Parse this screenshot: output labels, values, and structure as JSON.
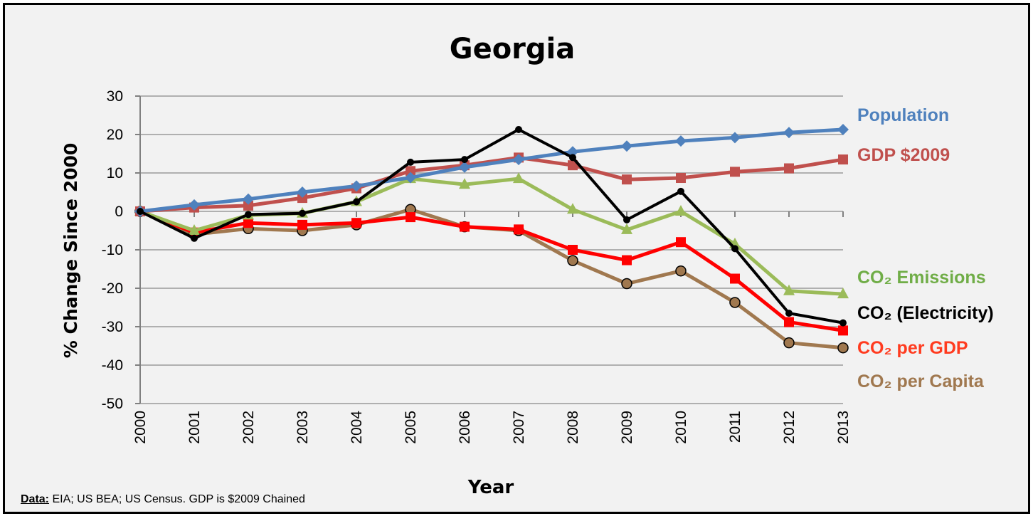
{
  "chart_data": {
    "type": "line",
    "title": "Georgia",
    "xlabel": "Year",
    "ylabel": "% Change Since 2000",
    "ylim": [
      -50,
      30
    ],
    "yticks": [
      30,
      20,
      10,
      0,
      -10,
      -20,
      -30,
      -40,
      -50
    ],
    "grid": true,
    "legend_placement": "right (end-of-line labels)",
    "x": [
      "2000",
      "2001",
      "2002",
      "2003",
      "2004",
      "2005",
      "2006",
      "2007",
      "2008",
      "2009",
      "2010",
      "2011",
      "2012",
      "2013"
    ],
    "series": [
      {
        "name": "Population",
        "color": "#4f81bd",
        "marker": "diamond",
        "values": [
          0,
          1.7,
          3.2,
          5.0,
          6.6,
          8.8,
          11.5,
          13.5,
          15.5,
          17.0,
          18.3,
          19.2,
          20.5,
          21.3
        ]
      },
      {
        "name": "GDP $2009",
        "color": "#c0504d",
        "marker": "square",
        "values": [
          0,
          1.0,
          1.5,
          3.5,
          6.0,
          10.5,
          12.0,
          14.0,
          12.0,
          8.3,
          8.7,
          10.3,
          11.2,
          13.5
        ]
      },
      {
        "name": "CO₂ Emissions",
        "color": "#9bbb59",
        "marker": "triangle",
        "values": [
          0,
          -5.0,
          -1.0,
          -0.5,
          2.5,
          8.5,
          7.0,
          8.5,
          0.5,
          -4.8,
          0.0,
          -8.5,
          -20.7,
          -21.5
        ]
      },
      {
        "name": "CO₂ (Electricity)",
        "color": "#000000",
        "marker": "dot",
        "values": [
          0,
          -7.0,
          -0.8,
          -0.5,
          2.5,
          12.8,
          13.5,
          21.3,
          14.0,
          -2.2,
          5.2,
          -9.7,
          -26.5,
          -29.0
        ]
      },
      {
        "name": "CO₂ per GDP",
        "color": "#ff0000",
        "marker": "square",
        "values": [
          0,
          -5.5,
          -3.0,
          -3.5,
          -3.0,
          -1.5,
          -4.0,
          -4.7,
          -10.0,
          -12.7,
          -8.0,
          -17.5,
          -28.8,
          -31.0
        ]
      },
      {
        "name": "CO₂ per Capita",
        "color": "#a0784f",
        "marker": "circle",
        "values": [
          0,
          -6.0,
          -4.5,
          -5.0,
          -3.5,
          0.5,
          -4.0,
          -5.0,
          -12.8,
          -18.8,
          -15.5,
          -23.7,
          -34.2,
          -35.5
        ]
      }
    ],
    "label_colors": [
      "#4f81bd",
      "#c0504d",
      "#70ad47",
      "#000000",
      "#ff3b1f",
      "#a0784f"
    ]
  },
  "footer": {
    "data_label": "Data:",
    "source_text": " EIA; US BEA; US Census. GDP is $2009 Chained"
  }
}
